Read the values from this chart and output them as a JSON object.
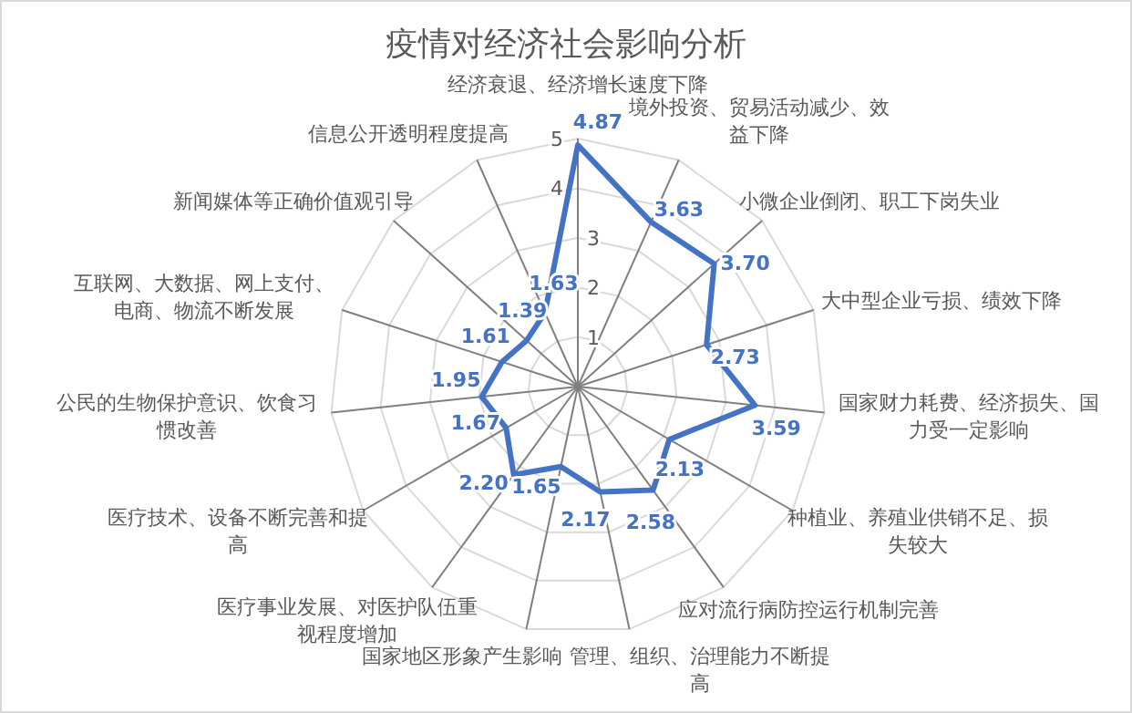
{
  "chart_data": {
    "type": "radar",
    "title": "疫情对经济社会影响分析",
    "categories": [
      "经济衰退、经济增长速度下降",
      "境外投资、贸易活动减少、效益下降",
      "小微企业倒闭、职工下岗失业",
      "大中型企业亏损、绩效下降",
      "国家财力耗费、经济损失、国力受一定影响",
      "种植业、养殖业供销不足、损失较大",
      "应对流行病防控运行机制完善",
      "管理、组织、治理能力不断提高",
      "国家地区形象产生影响",
      "医疗事业发展、对医护队伍重视程度增加",
      "医疗技术、设备不断完善和提高",
      "公民的生物保护意识、饮食习惯改善",
      "互联网、大数据、网上支付、电商、物流不断发展",
      "新闻媒体等正确价值观引导",
      "信息公开透明程度提高"
    ],
    "series": [
      {
        "color": "#4472c4",
        "values": [
          4.87,
          3.63,
          3.7,
          2.73,
          3.59,
          2.13,
          2.58,
          2.17,
          1.65,
          2.2,
          1.67,
          1.95,
          1.61,
          1.39,
          1.63
        ]
      }
    ],
    "value_labels": [
      "4.87",
      "3.63",
      "3.70",
      "2.73",
      "3.59",
      "2.13",
      "2.58",
      "2.17",
      "1.65",
      "2.20",
      "1.67",
      "1.95",
      "1.61",
      "1.39",
      "1.63"
    ],
    "ylim": [
      0,
      5
    ],
    "yticks": [
      1,
      2,
      3,
      4,
      5
    ],
    "grid": true,
    "marker": "none"
  }
}
